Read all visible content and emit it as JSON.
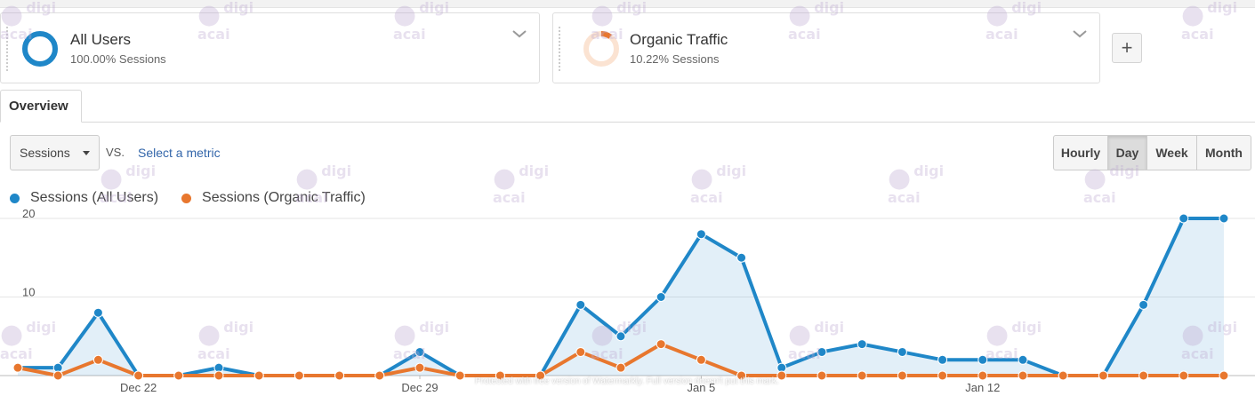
{
  "segments": [
    {
      "title": "All Users",
      "subtitle": "100.00% Sessions",
      "ring_color": "#1f87c8",
      "fill_fraction": 1.0
    },
    {
      "title": "Organic Traffic",
      "subtitle": "10.22% Sessions",
      "ring_color": "#e8772e",
      "fill_fraction": 0.1022
    }
  ],
  "add_segment_label": "+",
  "tabs": [
    {
      "label": "Overview",
      "active": true
    }
  ],
  "controls": {
    "metric_select": "Sessions",
    "vs_label": "VS.",
    "select_metric_link": "Select a metric",
    "granularity": [
      "Hourly",
      "Day",
      "Week",
      "Month"
    ],
    "granularity_selected": "Day"
  },
  "legend": [
    {
      "label": "Sessions (All Users)",
      "color": "#1f87c8"
    },
    {
      "label": "Sessions (Organic Traffic)",
      "color": "#e8772e"
    }
  ],
  "chart_data": {
    "type": "line",
    "ylim": [
      0,
      20
    ],
    "yticks": [
      10,
      20
    ],
    "x_labels": [
      {
        "index": 3,
        "label": "Dec 22"
      },
      {
        "index": 10,
        "label": "Dec 29"
      },
      {
        "index": 17,
        "label": "Jan 5"
      },
      {
        "index": 24,
        "label": "Jan 12"
      }
    ],
    "series": [
      {
        "name": "Sessions (All Users)",
        "color": "#1f87c8",
        "area": true,
        "values": [
          1,
          1,
          8,
          0,
          0,
          1,
          0,
          0,
          0,
          0,
          3,
          0,
          0,
          0,
          9,
          5,
          10,
          18,
          15,
          1,
          3,
          4,
          3,
          2,
          2,
          2,
          0,
          0,
          9,
          20,
          20
        ]
      },
      {
        "name": "Sessions (Organic Traffic)",
        "color": "#e8772e",
        "area": false,
        "values": [
          1,
          0,
          2,
          0,
          0,
          0,
          0,
          0,
          0,
          0,
          1,
          0,
          0,
          0,
          3,
          1,
          4,
          2,
          0,
          0,
          0,
          0,
          0,
          0,
          0,
          0,
          0,
          0,
          0,
          0,
          0
        ]
      }
    ]
  },
  "watermark": {
    "logo_text": "digi acai",
    "footer": "Protected with free version of Watermarkly. Full version doesn't put this mark."
  }
}
